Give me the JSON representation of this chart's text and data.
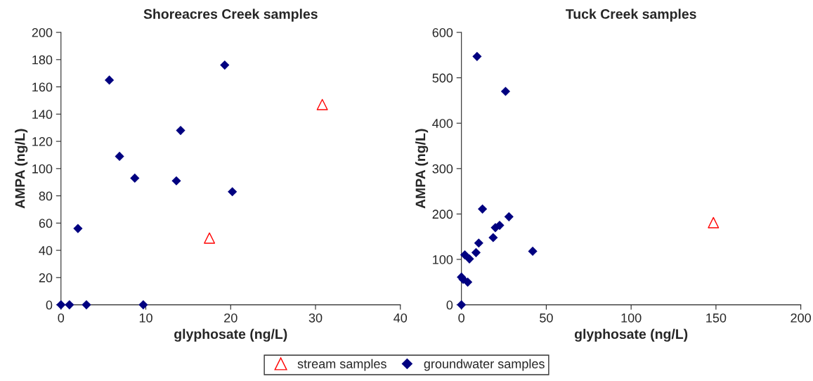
{
  "chart_data": [
    {
      "type": "scatter",
      "title": "Shoreacres Creek samples",
      "xlabel": "glyphosate (ng/L)",
      "ylabel": "AMPA (ng/L)",
      "xlim": [
        0,
        40
      ],
      "xticks": [
        0,
        10,
        20,
        30,
        40
      ],
      "ylim": [
        0,
        200
      ],
      "yticks": [
        0,
        20,
        40,
        60,
        80,
        100,
        120,
        140,
        160,
        180,
        200
      ],
      "grid": false,
      "legend": "bottom",
      "series": [
        {
          "name": "stream samples",
          "color": "#ff0000",
          "marker": "triangle",
          "x": [
            17.5,
            30.8
          ],
          "values": [
            49,
            147
          ]
        },
        {
          "name": "groundwater samples",
          "color": "#000080",
          "marker": "diamond",
          "x": [
            0,
            1,
            3,
            9.7,
            2,
            5.7,
            6.9,
            8.7,
            13.6,
            14.1,
            19.3,
            20.2
          ],
          "values": [
            0,
            0,
            0,
            0,
            56,
            165,
            109,
            93,
            91,
            128,
            176,
            83
          ]
        }
      ]
    },
    {
      "type": "scatter",
      "title": "Tuck Creek samples",
      "xlabel": "glyphosate (ng/L)",
      "ylabel": "AMPA (ng/L)",
      "xlim": [
        0,
        200
      ],
      "xticks": [
        0,
        50,
        100,
        150,
        200
      ],
      "ylim": [
        0,
        600
      ],
      "yticks": [
        0,
        100,
        200,
        300,
        400,
        500,
        600
      ],
      "grid": false,
      "series": [
        {
          "color": "#ff0000",
          "marker": "triangle",
          "x": [
            148.5
          ],
          "values": [
            181
          ]
        },
        {
          "color": "#000080",
          "marker": "diamond",
          "x": [
            0,
            0,
            1,
            3.7,
            2,
            4.7,
            8.6,
            10.2,
            9.2,
            12.4,
            18.7,
            20,
            22.5,
            28,
            26,
            42
          ],
          "values": [
            0,
            61,
            56,
            50,
            110,
            101,
            115,
            136,
            547,
            211,
            148,
            170,
            175,
            194,
            470,
            118
          ]
        }
      ]
    }
  ]
}
